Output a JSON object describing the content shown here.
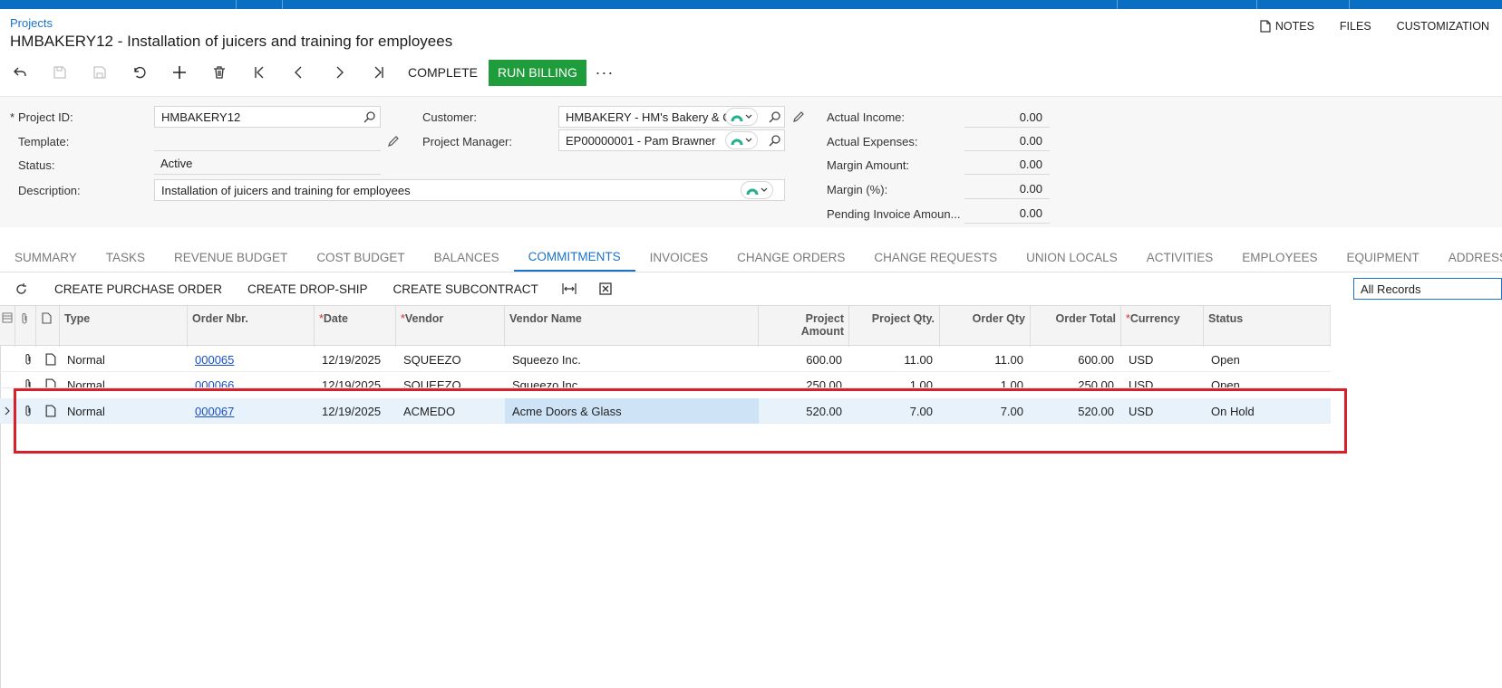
{
  "breadcrumb": "Projects",
  "page_title": "HMBAKERY12 - Installation of juicers and training for employees",
  "top_links": [
    "NOTES",
    "FILES",
    "CUSTOMIZATION"
  ],
  "toolbar": {
    "complete": "COMPLETE",
    "run_billing": "RUN BILLING",
    "more": "···"
  },
  "form": {
    "project_id_label": "Project ID:",
    "project_id": "HMBAKERY12",
    "template_label": "Template:",
    "template": "",
    "status_label": "Status:",
    "status": "Active",
    "description_label": "Description:",
    "description": "Installation of juicers and training for employees",
    "customer_label": "Customer:",
    "customer": "HMBAKERY - HM's Bakery & C",
    "project_manager_label": "Project Manager:",
    "project_manager": "EP00000001 - Pam Brawner"
  },
  "summary": {
    "actual_income_label": "Actual Income:",
    "actual_income": "0.00",
    "actual_expenses_label": "Actual Expenses:",
    "actual_expenses": "0.00",
    "margin_amount_label": "Margin Amount:",
    "margin_amount": "0.00",
    "margin_pct_label": "Margin (%):",
    "margin_pct": "0.00",
    "pending_invoice_label": "Pending Invoice Amoun...",
    "pending_invoice": "0.00"
  },
  "tabs": [
    "SUMMARY",
    "TASKS",
    "REVENUE BUDGET",
    "COST BUDGET",
    "BALANCES",
    "COMMITMENTS",
    "INVOICES",
    "CHANGE ORDERS",
    "CHANGE REQUESTS",
    "UNION LOCALS",
    "ACTIVITIES",
    "EMPLOYEES",
    "EQUIPMENT",
    "ADDRESSES"
  ],
  "active_tab": "COMMITMENTS",
  "grid_toolbar": {
    "create_po": "CREATE PURCHASE ORDER",
    "create_dropship": "CREATE DROP-SHIP",
    "create_subcontract": "CREATE SUBCONTRACT",
    "filter": "All Records"
  },
  "columns": {
    "type": "Type",
    "order_nbr": "Order Nbr.",
    "date": "Date",
    "vendor": "Vendor",
    "vendor_name": "Vendor Name",
    "project_amount_1": "Project",
    "project_amount_2": "Amount",
    "project_qty": "Project Qty.",
    "order_qty": "Order Qty",
    "order_total": "Order Total",
    "currency": "Currency",
    "status": "Status"
  },
  "rows": [
    {
      "type": "Normal",
      "order_nbr": "000065",
      "date": "12/19/2025",
      "vendor": "SQUEEZO",
      "vendor_name": "Squeezo Inc.",
      "project_amount": "600.00",
      "project_qty": "11.00",
      "order_qty": "11.00",
      "order_total": "600.00",
      "currency": "USD",
      "status": "Open"
    },
    {
      "type": "Normal",
      "order_nbr": "000066",
      "date": "12/19/2025",
      "vendor": "SQUEEZO",
      "vendor_name": "Squeezo Inc.",
      "project_amount": "250.00",
      "project_qty": "1.00",
      "order_qty": "1.00",
      "order_total": "250.00",
      "currency": "USD",
      "status": "Open"
    },
    {
      "type": "Normal",
      "order_nbr": "000067",
      "date": "12/19/2025",
      "vendor": "ACMEDO",
      "vendor_name": "Acme Doors & Glass",
      "project_amount": "520.00",
      "project_qty": "7.00",
      "order_qty": "7.00",
      "order_total": "520.00",
      "currency": "USD",
      "status": "On Hold"
    }
  ],
  "colors": {
    "topbar": "#0a6fc2",
    "accent": "#1a73c8",
    "run_billing": "#1f9d3d",
    "highlight": "#d7202a"
  }
}
